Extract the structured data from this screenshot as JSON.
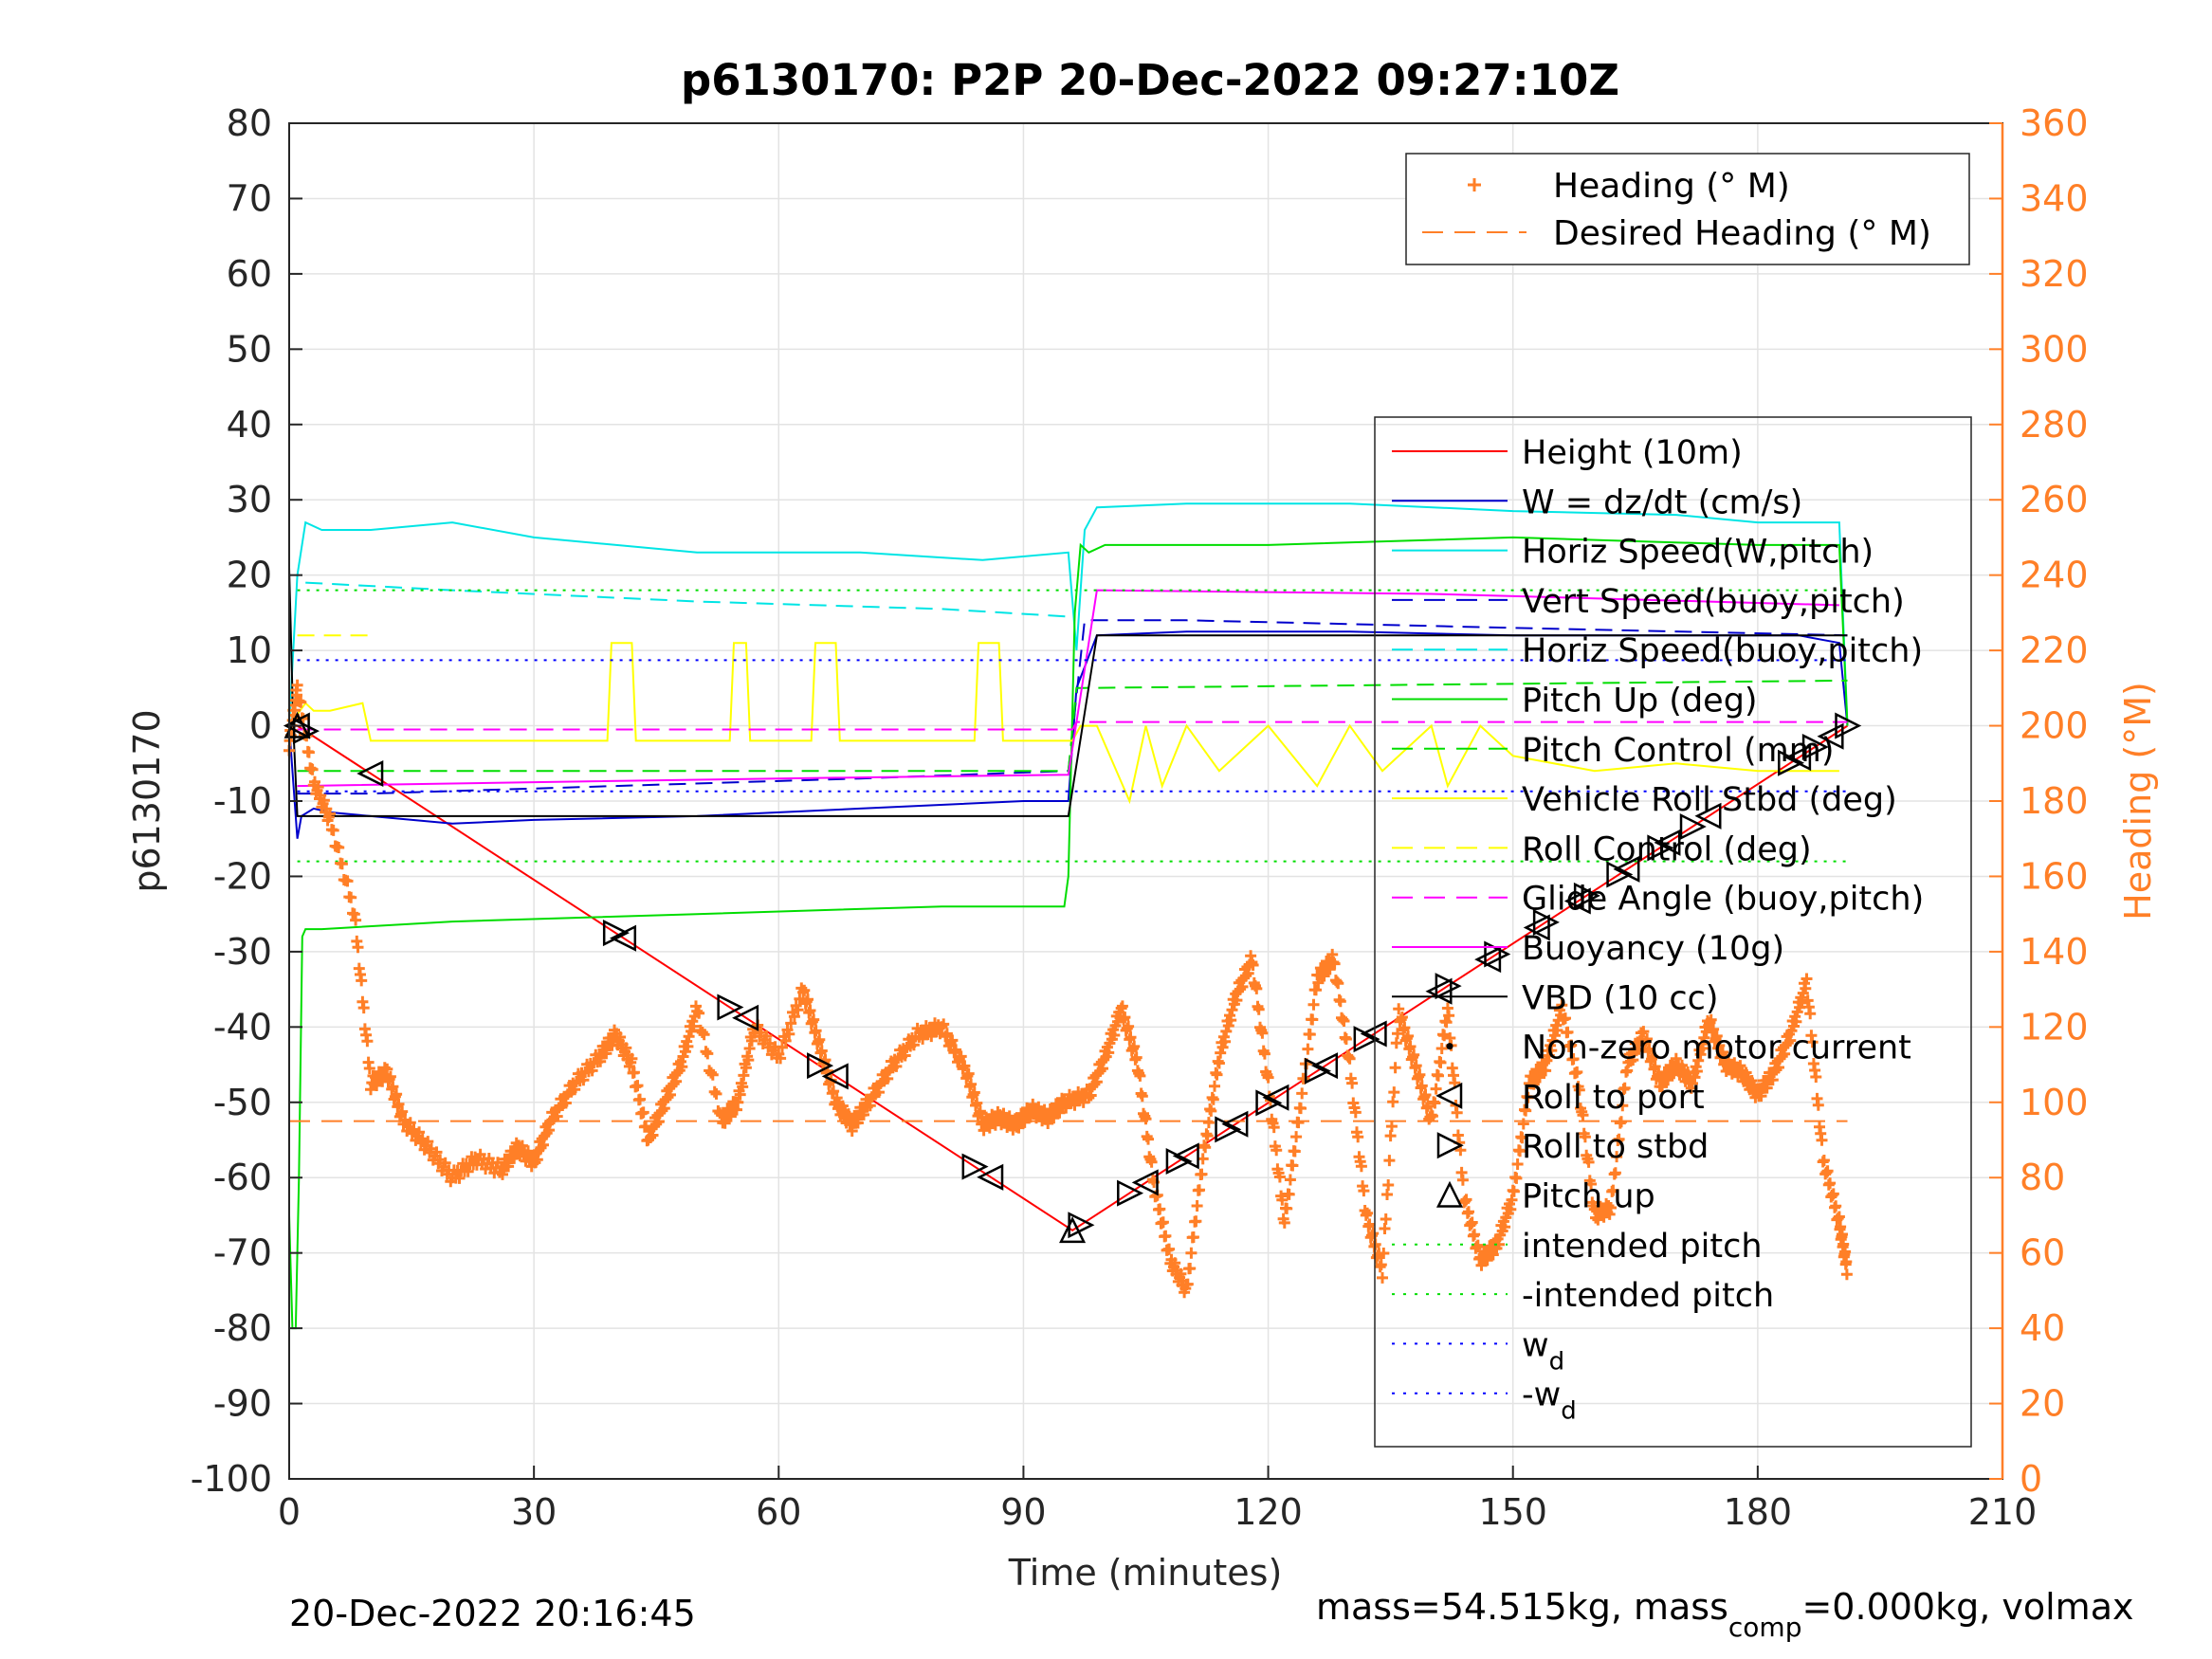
{
  "figure": {
    "title": "p6130170: P2P 20-Dec-2022 09:27:10Z",
    "footer_left": "20-Dec-2022 20:16:45",
    "footer_right_a": "mass=54.515kg, mass",
    "footer_right_sub": "comp",
    "footer_right_b": "=0.000kg, volmax"
  },
  "chart_data": {
    "type": "line",
    "title": "p6130170: P2P 20-Dec-2022 09:27:10Z",
    "xlabel": "Time (minutes)",
    "ylabel": "p6130170",
    "y2label": "Heading (°M)",
    "xlim": [
      0,
      210
    ],
    "ylim": [
      -100,
      80
    ],
    "y2lim": [
      0,
      360
    ],
    "xticks": [
      0,
      30,
      60,
      90,
      120,
      150,
      180,
      210
    ],
    "yticks": [
      -100,
      -90,
      -80,
      -70,
      -60,
      -50,
      -40,
      -30,
      -20,
      -10,
      0,
      10,
      20,
      30,
      40,
      50,
      60,
      70,
      80
    ],
    "y2ticks": [
      0,
      20,
      40,
      60,
      80,
      100,
      120,
      140,
      160,
      180,
      200,
      220,
      240,
      260,
      280,
      300,
      320,
      340,
      360
    ],
    "grid": true,
    "colors": {
      "heading": "#ff7f27",
      "height": "#ff0000",
      "w": "#0000cc",
      "horiz_speed": "#00e5e5",
      "pitch": "#00dd00",
      "roll": "#ffff00",
      "glide": "#ff00ff",
      "vbd": "#000000",
      "wd": "#0000ff"
    },
    "legend_heading": {
      "placement": "top-right",
      "entries": [
        {
          "label": "Heading (° M)",
          "style": "marker-plus",
          "color": "#ff7f27"
        },
        {
          "label": "Desired Heading (° M)",
          "style": "dashed",
          "color": "#ff7f27"
        }
      ]
    },
    "legend_main": {
      "placement": "right",
      "entries": [
        {
          "label": "Height (10m)",
          "style": "solid",
          "color": "#ff0000"
        },
        {
          "label": "W = dz/dt (cm/s)",
          "style": "solid",
          "color": "#0000cc"
        },
        {
          "label": "Horiz Speed(W,pitch)",
          "style": "solid",
          "color": "#00e5e5"
        },
        {
          "label": "Vert Speed(buoy,pitch)",
          "style": "dashed",
          "color": "#0000cc"
        },
        {
          "label": "Horiz Speed(buoy,pitch)",
          "style": "dashed",
          "color": "#00e5e5"
        },
        {
          "label": "Pitch Up (deg)",
          "style": "solid",
          "color": "#00dd00"
        },
        {
          "label": "Pitch Control (mm)",
          "style": "dashed",
          "color": "#00dd00"
        },
        {
          "label": "Vehicle Roll Stbd (deg)",
          "style": "solid",
          "color": "#ffff00"
        },
        {
          "label": "Roll Control (deg)",
          "style": "dashed",
          "color": "#ffff00"
        },
        {
          "label": "Glide Angle (buoy,pitch)",
          "style": "dashed",
          "color": "#ff00ff"
        },
        {
          "label": "Buoyancy (10g)",
          "style": "solid",
          "color": "#ff00ff"
        },
        {
          "label": "VBD (10 cc)",
          "style": "solid",
          "color": "#000000"
        },
        {
          "label": "Non-zero motor current",
          "style": "dot",
          "color": "#000000"
        },
        {
          "label": "Roll to port",
          "style": "tri-left",
          "color": "#000000"
        },
        {
          "label": "Roll to stbd",
          "style": "tri-right",
          "color": "#000000"
        },
        {
          "label": "Pitch up",
          "style": "tri-up",
          "color": "#000000"
        },
        {
          "label": "intended pitch",
          "style": "dotted",
          "color": "#00dd00"
        },
        {
          "label": "-intended pitch",
          "style": "dotted",
          "color": "#00dd00"
        },
        {
          "label": "w",
          "sub": "d",
          "style": "dotted",
          "color": "#0000ff"
        },
        {
          "label": "-w",
          "sub": "d",
          "style": "dotted",
          "color": "#0000ff"
        }
      ]
    },
    "series": [
      {
        "key": "height",
        "color": "#ff0000",
        "dash": "",
        "x": [
          0,
          1,
          96,
          191
        ],
        "y": [
          0,
          0,
          -67,
          0
        ]
      },
      {
        "key": "w",
        "color": "#0000cc",
        "dash": "",
        "x": [
          0,
          1,
          1.5,
          3,
          5,
          10,
          20,
          30,
          50,
          70,
          90,
          95.5,
          96.5,
          99,
          110,
          130,
          150,
          170,
          185,
          190,
          191
        ],
        "y": [
          0,
          -15,
          -12,
          -11,
          -11.5,
          -12,
          -13,
          -12.5,
          -12,
          -11,
          -10,
          -10,
          5,
          12,
          12.5,
          12.5,
          12,
          12,
          12,
          11,
          0
        ]
      },
      {
        "key": "horiz_w",
        "color": "#00e5e5",
        "dash": "",
        "x": [
          0,
          1,
          2,
          4,
          10,
          20,
          30,
          50,
          70,
          85,
          95.5,
          96.5,
          97.5,
          99,
          110,
          130,
          150,
          170,
          180,
          190,
          191
        ],
        "y": [
          0,
          20,
          27,
          26,
          26,
          27,
          25,
          23,
          23,
          22,
          23,
          10,
          26,
          29,
          29.5,
          29.5,
          28.5,
          28,
          27,
          27,
          0
        ]
      },
      {
        "key": "vert_buoy",
        "color": "#0000cc",
        "dash": "18 10",
        "x": [
          1,
          10,
          40,
          70,
          95.5,
          97.5,
          110,
          150,
          191
        ],
        "y": [
          -9,
          -9,
          -8,
          -7,
          -6,
          14,
          14,
          13,
          12
        ]
      },
      {
        "key": "horiz_buoy",
        "color": "#00e5e5",
        "dash": "18 10",
        "x": [
          2,
          20,
          50,
          80,
          95.5
        ],
        "y": [
          19,
          18,
          16.5,
          15.5,
          14.5
        ]
      },
      {
        "key": "pitch",
        "color": "#00dd00",
        "dash": "",
        "x": [
          0,
          0.4,
          0.8,
          1.2,
          1.6,
          2,
          4,
          20,
          50,
          80,
          95,
          95.5,
          96.3,
          97,
          98,
          100,
          120,
          150,
          180,
          190,
          191
        ],
        "y": [
          -65,
          -80,
          -80,
          -60,
          -28,
          -27,
          -27,
          -26,
          -25,
          -24,
          -24,
          -20,
          15,
          24,
          23,
          24,
          24,
          25,
          24,
          24,
          0
        ]
      },
      {
        "key": "pitch_ctrl",
        "color": "#00dd00",
        "dash": "18 10",
        "x": [
          1,
          30,
          95.5,
          96.5,
          191
        ],
        "y": [
          -6,
          -6,
          -6,
          5,
          6
        ]
      },
      {
        "key": "roll",
        "color": "#ffff00",
        "dash": "",
        "x": [
          0,
          2,
          3,
          5,
          9,
          10,
          20,
          39,
          39.5,
          42,
          42.5,
          54,
          54.5,
          56,
          56.5,
          64,
          64.5,
          67,
          67.5,
          84,
          84.5,
          87,
          87.5,
          96,
          97,
          99,
          103,
          105,
          107,
          110,
          114,
          120,
          126,
          130,
          134,
          140,
          142,
          146,
          150,
          160,
          170,
          180,
          190
        ],
        "y": [
          0,
          3,
          2,
          2,
          3,
          -2,
          -2,
          -2,
          11,
          11,
          -2,
          -2,
          11,
          11,
          -2,
          -2,
          11,
          11,
          -2,
          -2,
          11,
          11,
          -2,
          -2,
          0,
          0,
          -10,
          0,
          -8,
          0,
          -6,
          0,
          -8,
          0,
          -6,
          0,
          -8,
          0,
          -4,
          -6,
          -5,
          -6,
          -6
        ]
      },
      {
        "key": "roll_ctrl",
        "color": "#ffff00",
        "dash": "18 10",
        "x": [
          1,
          10
        ],
        "y": [
          12,
          12
        ]
      },
      {
        "key": "glide",
        "color": "#ff00ff",
        "dash": "18 10",
        "x": [
          1,
          96,
          96.5,
          191
        ],
        "y": [
          -0.5,
          -0.5,
          0.5,
          0.5
        ]
      },
      {
        "key": "buoyancy",
        "color": "#ff00ff",
        "dash": "",
        "x": [
          1,
          30,
          60,
          95.5,
          99,
          140,
          190
        ],
        "y": [
          -8,
          -7.5,
          -7,
          -6.5,
          18,
          17.5,
          16
        ]
      },
      {
        "key": "vbd",
        "color": "#000000",
        "dash": "",
        "x": [
          0,
          0.5,
          1,
          95.5,
          99,
          191
        ],
        "y": [
          21,
          0,
          -12,
          -12,
          12,
          12
        ]
      },
      {
        "key": "intended_pitch",
        "color": "#00dd00",
        "dash": "3 7",
        "x": [
          1,
          191
        ],
        "y": [
          18,
          18
        ]
      },
      {
        "key": "neg_intended_pitch",
        "color": "#00dd00",
        "dash": "3 7",
        "x": [
          1,
          191
        ],
        "y": [
          -18,
          -18
        ]
      },
      {
        "key": "wd",
        "color": "#0000ff",
        "dash": "3 7",
        "x": [
          1,
          191
        ],
        "y": [
          8.7,
          8.7
        ]
      },
      {
        "key": "neg_wd",
        "color": "#0000ff",
        "dash": "3 7",
        "x": [
          1,
          191
        ],
        "y": [
          -8.7,
          -8.7
        ]
      }
    ],
    "desired_heading": {
      "x": [
        0,
        191
      ],
      "y2": [
        95,
        95
      ],
      "color": "#ff7f27"
    },
    "heading": {
      "color": "#ff7f27",
      "x": [
        0,
        1,
        3,
        5,
        8,
        10,
        12,
        14,
        17,
        20,
        23,
        26,
        28,
        30,
        32,
        35,
        38,
        40,
        42,
        44,
        46,
        48,
        50,
        53,
        55,
        57,
        60,
        63,
        65,
        67,
        69,
        71,
        74,
        77,
        80,
        83,
        85,
        87,
        89,
        91,
        93,
        95,
        98,
        100,
        102,
        104,
        106,
        108,
        110,
        112,
        114,
        116,
        118,
        120,
        122,
        124,
        126,
        128,
        130,
        132,
        134,
        136,
        138,
        140,
        142,
        144,
        146,
        148,
        150,
        152,
        154,
        156,
        158,
        160,
        162,
        164,
        166,
        168,
        170,
        172,
        174,
        176,
        178,
        180,
        182,
        184,
        186,
        188,
        190,
        191
      ],
      "y2": [
        195,
        210,
        185,
        175,
        150,
        105,
        108,
        95,
        88,
        80,
        85,
        82,
        88,
        84,
        95,
        105,
        112,
        118,
        110,
        90,
        100,
        110,
        125,
        95,
        100,
        120,
        112,
        130,
        115,
        100,
        94,
        100,
        110,
        118,
        120,
        108,
        94,
        96,
        94,
        98,
        96,
        100,
        102,
        112,
        125,
        110,
        78,
        58,
        50,
        85,
        112,
        128,
        138,
        105,
        68,
        100,
        133,
        138,
        110,
        70,
        55,
        124,
        110,
        95,
        125,
        75,
        58,
        62,
        75,
        105,
        110,
        125,
        105,
        70,
        72,
        110,
        118,
        105,
        110,
        105,
        122,
        110,
        108,
        102,
        108,
        118,
        132,
        85,
        68,
        55
      ]
    },
    "markers": {
      "roll_port_x": [
        1,
        10,
        41,
        56,
        67,
        86,
        105,
        110,
        116,
        121,
        127,
        133,
        141,
        147,
        153,
        158,
        164,
        169,
        174,
        185,
        189
      ],
      "roll_stbd_x": [
        2,
        40,
        54,
        65,
        84,
        97,
        103,
        109,
        115,
        120,
        126,
        132,
        142,
        148,
        154,
        159,
        163,
        168,
        172,
        184,
        187,
        191
      ],
      "pitch_up_x": [
        1,
        96
      ]
    }
  }
}
